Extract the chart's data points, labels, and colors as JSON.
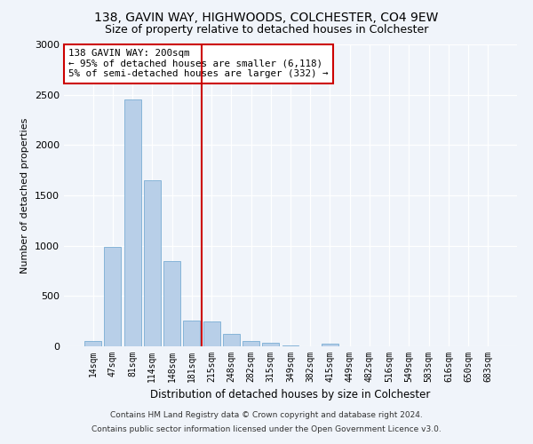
{
  "title1": "138, GAVIN WAY, HIGHWOODS, COLCHESTER, CO4 9EW",
  "title2": "Size of property relative to detached houses in Colchester",
  "xlabel": "Distribution of detached houses by size in Colchester",
  "ylabel": "Number of detached properties",
  "categories": [
    "14sqm",
    "47sqm",
    "81sqm",
    "114sqm",
    "148sqm",
    "181sqm",
    "215sqm",
    "248sqm",
    "282sqm",
    "315sqm",
    "349sqm",
    "382sqm",
    "415sqm",
    "449sqm",
    "482sqm",
    "516sqm",
    "549sqm",
    "583sqm",
    "616sqm",
    "650sqm",
    "683sqm"
  ],
  "values": [
    50,
    990,
    2450,
    1650,
    850,
    260,
    250,
    120,
    50,
    38,
    10,
    2,
    28,
    2,
    0,
    0,
    0,
    0,
    0,
    0,
    0
  ],
  "bar_color": "#b8cfe8",
  "bar_edge_color": "#7aadd4",
  "vline_x": 6.0,
  "vline_color": "#cc0000",
  "annotation_text": "138 GAVIN WAY: 200sqm\n← 95% of detached houses are smaller (6,118)\n5% of semi-detached houses are larger (332) →",
  "annotation_box_color": "#cc0000",
  "background_color": "#f0f4fa",
  "plot_bg_color": "#f0f4fa",
  "footer1": "Contains HM Land Registry data © Crown copyright and database right 2024.",
  "footer2": "Contains public sector information licensed under the Open Government Licence v3.0.",
  "ylim": [
    0,
    3000
  ],
  "yticks": [
    0,
    500,
    1000,
    1500,
    2000,
    2500,
    3000
  ],
  "title_fontsize": 10,
  "subtitle_fontsize": 9
}
